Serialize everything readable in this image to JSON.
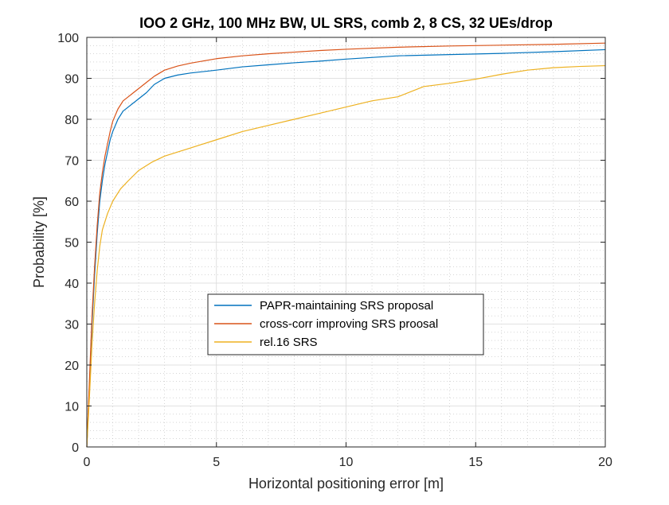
{
  "chart_data": {
    "type": "line",
    "title": "IOO 2 GHz, 100 MHz BW, UL SRS, comb 2, 8 CS, 32 UEs/drop",
    "xlabel": "Horizontal positioning error [m]",
    "ylabel": "Probability [%]",
    "xlim": [
      0,
      20
    ],
    "ylim": [
      0,
      100
    ],
    "xticks": [
      0,
      5,
      10,
      15,
      20
    ],
    "yticks": [
      0,
      10,
      20,
      30,
      40,
      50,
      60,
      70,
      80,
      90,
      100
    ],
    "grid": "on (major and minor)",
    "legend_position": "lower-center",
    "series": [
      {
        "name": "PAPR-maintaining SRS proposal",
        "color": "#0072BD",
        "x": [
          0,
          0.1,
          0.2,
          0.3,
          0.4,
          0.5,
          0.6,
          0.7,
          0.8,
          0.9,
          1.0,
          1.2,
          1.4,
          1.6,
          1.8,
          2.0,
          2.3,
          2.6,
          3.0,
          3.5,
          4.0,
          5.0,
          6.0,
          7.0,
          8.0,
          9.0,
          10.0,
          12.0,
          14.0,
          16.0,
          18.0,
          20.0
        ],
        "y": [
          0,
          15,
          30,
          42,
          52,
          60,
          65,
          69,
          72,
          75,
          77,
          80,
          82,
          83,
          84,
          85,
          86.5,
          88.5,
          90,
          90.8,
          91.3,
          92,
          92.8,
          93.3,
          93.8,
          94.2,
          94.7,
          95.5,
          95.8,
          96.1,
          96.5,
          97
        ]
      },
      {
        "name": "cross-corr improving SRS proosal",
        "color": "#D95319",
        "x": [
          0,
          0.1,
          0.2,
          0.3,
          0.4,
          0.5,
          0.6,
          0.7,
          0.8,
          0.9,
          1.0,
          1.2,
          1.4,
          1.6,
          1.8,
          2.0,
          2.3,
          2.6,
          3.0,
          3.5,
          4.0,
          5.0,
          6.0,
          7.0,
          8.0,
          9.0,
          10.0,
          12.0,
          14.0,
          16.0,
          18.0,
          20.0
        ],
        "y": [
          0,
          16,
          32,
          44,
          54,
          62,
          67,
          71,
          74,
          77,
          79.5,
          82.5,
          84.5,
          85.5,
          86.5,
          87.5,
          89,
          90.5,
          92,
          93,
          93.7,
          94.8,
          95.5,
          96,
          96.4,
          96.8,
          97.1,
          97.6,
          97.9,
          98.1,
          98.3,
          98.6
        ]
      },
      {
        "name": "rel.16 SRS",
        "color": "#EDB120",
        "x": [
          0,
          0.1,
          0.2,
          0.3,
          0.4,
          0.5,
          0.6,
          0.8,
          1.0,
          1.3,
          1.6,
          2.0,
          2.5,
          3.0,
          3.5,
          4.0,
          5.0,
          6.0,
          7.0,
          8.0,
          9.0,
          10.0,
          11.0,
          12.0,
          13.0,
          14.0,
          15.0,
          16.0,
          17.0,
          18.0,
          19.0,
          20.0
        ],
        "y": [
          0,
          12,
          25,
          35,
          43,
          49,
          53,
          57,
          60,
          63,
          65,
          67.5,
          69.5,
          71,
          72,
          73,
          75,
          77,
          78.5,
          80,
          81.5,
          83,
          84.5,
          85.5,
          88,
          88.8,
          89.8,
          91,
          92,
          92.6,
          92.9,
          93.1
        ]
      }
    ]
  }
}
